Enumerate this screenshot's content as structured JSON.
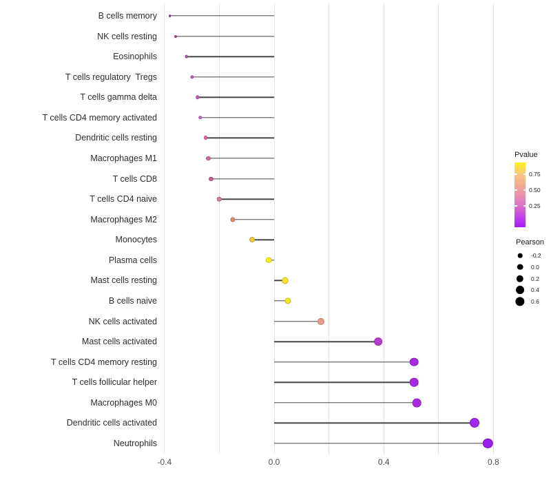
{
  "chart_data": {
    "type": "lollipop",
    "title": "",
    "xlabel": "",
    "ylabel": "",
    "value_axis": {
      "tick_labels": [
        "-0.4",
        "0.0",
        "0.4",
        "0.8"
      ],
      "tick_values": [
        -0.4,
        0.0,
        0.4,
        0.8
      ],
      "gridline_values": [
        -0.4,
        -0.2,
        0.0,
        0.2,
        0.4,
        0.6,
        0.8
      ],
      "range": [
        -0.44,
        0.85
      ],
      "grid": "on"
    },
    "color_encodes": "Pvalue",
    "size_encodes": "Pearson",
    "points": [
      {
        "label": "B cells memory",
        "pearson": -0.38,
        "color": "#A03B9A"
      },
      {
        "label": "NK cells resting",
        "pearson": -0.36,
        "color": "#B04AA6"
      },
      {
        "label": "Eosinophils",
        "pearson": -0.32,
        "color": "#BE58B1"
      },
      {
        "label": "T cells regulatory  Tregs",
        "pearson": -0.3,
        "color": "#C35FB4"
      },
      {
        "label": "T cells gamma delta",
        "pearson": -0.28,
        "color": "#C764B7"
      },
      {
        "label": "T cells CD4 memory activated",
        "pearson": -0.27,
        "color": "#CA68BA"
      },
      {
        "label": "Dendritic cells resting",
        "pearson": -0.25,
        "color": "#D56CA8"
      },
      {
        "label": "Macrophages M1",
        "pearson": -0.24,
        "color": "#D0689F"
      },
      {
        "label": "T cells CD8",
        "pearson": -0.23,
        "color": "#C75E90"
      },
      {
        "label": "T cells CD4 naive",
        "pearson": -0.2,
        "color": "#D97E98"
      },
      {
        "label": "Macrophages M2",
        "pearson": -0.15,
        "color": "#E0906A"
      },
      {
        "label": "Monocytes",
        "pearson": -0.08,
        "color": "#EECB45"
      },
      {
        "label": "Plasma cells",
        "pearson": -0.02,
        "color": "#FAF319"
      },
      {
        "label": "Mast cells resting",
        "pearson": 0.04,
        "color": "#F7E72B"
      },
      {
        "label": "B cells naive",
        "pearson": 0.05,
        "color": "#F7E72B"
      },
      {
        "label": "NK cells activated",
        "pearson": 0.17,
        "color": "#EC9C84"
      },
      {
        "label": "Mast cells activated",
        "pearson": 0.38,
        "color": "#B93BD1"
      },
      {
        "label": "T cells CD4 memory resting",
        "pearson": 0.51,
        "color": "#A82BE2"
      },
      {
        "label": "T cells follicular helper",
        "pearson": 0.51,
        "color": "#A82BE2"
      },
      {
        "label": "Macrophages M0",
        "pearson": 0.52,
        "color": "#A82BE2"
      },
      {
        "label": "Dendritic cells activated",
        "pearson": 0.73,
        "color": "#A226EB"
      },
      {
        "label": "Neutrophils",
        "pearson": 0.78,
        "color": "#9D1FEC"
      }
    ],
    "legend_position": "right"
  },
  "legend": {
    "pvalue": {
      "title": "Pvalue",
      "tick_labels": [
        "0.75",
        "0.50",
        "0.25"
      ],
      "gradient_top_to_bottom": [
        "#FCF21D",
        "#F6C77E",
        "#EF9E9C",
        "#DC74C8",
        "#BE44E8",
        "#A51EF5"
      ],
      "gradient_stop_pcts": [
        0,
        18,
        42,
        66,
        85,
        100
      ]
    },
    "pearson": {
      "title": "Pearson",
      "entries": [
        {
          "label": "-0.2",
          "value": -0.2
        },
        {
          "label": "0.0",
          "value": 0.0
        },
        {
          "label": "0.2",
          "value": 0.2
        },
        {
          "label": "0.4",
          "value": 0.4
        },
        {
          "label": "0.6",
          "value": 0.6
        }
      ]
    }
  }
}
